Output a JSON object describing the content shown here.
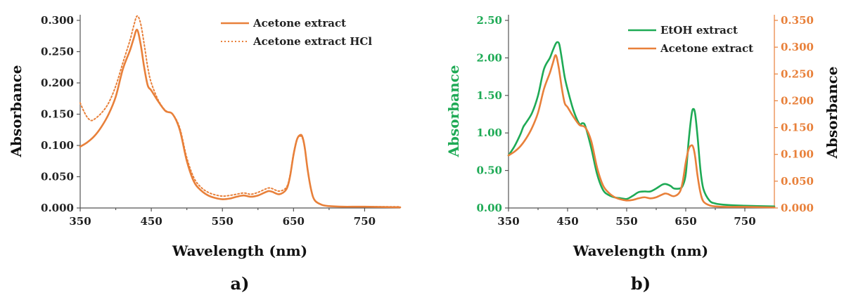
{
  "colors": {
    "orange": "#E8803A",
    "green": "#1EAA55",
    "axis": "#555555",
    "text": "#222222"
  },
  "chart_data": [
    {
      "type": "line",
      "panel_label": "a)",
      "xlabel": "Wavelength (nm)",
      "ylabel": "Absorbance",
      "xlim": [
        350,
        800
      ],
      "ylim": [
        0,
        0.3
      ],
      "xticks": [
        "350",
        "450",
        "550",
        "650",
        "750"
      ],
      "yticks": [
        "0.000",
        "0.050",
        "0.100",
        "0.150",
        "0.200",
        "0.250",
        "0.300"
      ],
      "legend_position": "top-right",
      "series": [
        {
          "name": "Acetone extract",
          "color": "#E8803A",
          "style": "solid",
          "x": [
            350,
            360,
            370,
            380,
            390,
            400,
            410,
            420,
            425,
            430,
            435,
            440,
            445,
            450,
            460,
            470,
            480,
            490,
            500,
            510,
            520,
            530,
            540,
            550,
            560,
            570,
            580,
            590,
            600,
            610,
            615,
            620,
            630,
            640,
            645,
            650,
            655,
            660,
            663,
            666,
            670,
            675,
            680,
            690,
            700,
            720,
            750,
            800
          ],
          "y": [
            0.098,
            0.105,
            0.115,
            0.13,
            0.15,
            0.178,
            0.222,
            0.252,
            0.27,
            0.285,
            0.262,
            0.225,
            0.196,
            0.188,
            0.17,
            0.155,
            0.15,
            0.125,
            0.075,
            0.042,
            0.028,
            0.02,
            0.016,
            0.014,
            0.015,
            0.018,
            0.02,
            0.018,
            0.02,
            0.025,
            0.027,
            0.026,
            0.022,
            0.03,
            0.05,
            0.085,
            0.11,
            0.117,
            0.112,
            0.095,
            0.06,
            0.028,
            0.012,
            0.005,
            0.003,
            0.002,
            0.002,
            0.001
          ]
        },
        {
          "name": "Acetone extract HCl",
          "color": "#E8803A",
          "style": "dotted",
          "x": [
            350,
            355,
            360,
            365,
            370,
            380,
            390,
            400,
            410,
            420,
            425,
            430,
            435,
            440,
            445,
            450,
            460,
            470,
            480,
            490,
            500,
            510,
            520,
            530,
            540,
            550,
            560,
            570,
            580,
            590,
            600,
            610,
            615,
            620,
            630,
            640,
            645,
            650,
            655,
            660,
            663,
            666,
            670,
            675,
            680,
            690,
            700,
            720,
            750,
            800
          ],
          "y": [
            0.168,
            0.155,
            0.145,
            0.14,
            0.142,
            0.152,
            0.168,
            0.195,
            0.232,
            0.268,
            0.29,
            0.307,
            0.295,
            0.262,
            0.225,
            0.2,
            0.172,
            0.156,
            0.15,
            0.128,
            0.08,
            0.048,
            0.033,
            0.025,
            0.021,
            0.019,
            0.02,
            0.022,
            0.024,
            0.022,
            0.025,
            0.03,
            0.032,
            0.031,
            0.027,
            0.033,
            0.052,
            0.087,
            0.11,
            0.115,
            0.11,
            0.094,
            0.06,
            0.028,
            0.012,
            0.005,
            0.003,
            0.002,
            0.002,
            0.002
          ]
        }
      ]
    },
    {
      "type": "line",
      "panel_label": "b)",
      "xlabel": "Wavelength (nm)",
      "ylabel_left": "Absorbance",
      "ylabel_right": "Absorbance",
      "xlim": [
        350,
        800
      ],
      "ylim_left": [
        0,
        2.5
      ],
      "ylim_right": [
        0,
        0.35
      ],
      "xticks": [
        "350",
        "450",
        "550",
        "650",
        "750"
      ],
      "yticks_left": [
        "0.00",
        "0.50",
        "1.00",
        "1.50",
        "2.00",
        "2.50"
      ],
      "yticks_right": [
        "0.000",
        "0.050",
        "0.100",
        "0.150",
        "0.200",
        "0.250",
        "0.300",
        "0.350"
      ],
      "legend_position": "top-right",
      "series": [
        {
          "name": "EtOH extract",
          "axis": "left",
          "color": "#1EAA55",
          "style": "solid",
          "x": [
            350,
            360,
            370,
            375,
            380,
            390,
            400,
            410,
            420,
            425,
            430,
            433,
            436,
            440,
            445,
            450,
            460,
            470,
            475,
            480,
            490,
            500,
            510,
            520,
            530,
            540,
            550,
            560,
            570,
            580,
            590,
            600,
            610,
            615,
            620,
            625,
            630,
            640,
            645,
            650,
            655,
            660,
            663,
            666,
            670,
            675,
            680,
            690,
            700,
            720,
            750,
            800
          ],
          "y": [
            0.7,
            0.82,
            0.98,
            1.08,
            1.14,
            1.27,
            1.5,
            1.85,
            2.0,
            2.1,
            2.19,
            2.21,
            2.18,
            2.0,
            1.75,
            1.58,
            1.3,
            1.12,
            1.13,
            1.09,
            0.8,
            0.45,
            0.24,
            0.17,
            0.14,
            0.13,
            0.12,
            0.16,
            0.21,
            0.22,
            0.22,
            0.26,
            0.31,
            0.32,
            0.31,
            0.29,
            0.26,
            0.26,
            0.3,
            0.45,
            0.9,
            1.25,
            1.32,
            1.25,
            0.95,
            0.5,
            0.25,
            0.1,
            0.06,
            0.04,
            0.03,
            0.02
          ]
        },
        {
          "name": "Acetone extract",
          "axis": "right",
          "color": "#E8803A",
          "style": "solid",
          "x": [
            350,
            360,
            370,
            380,
            390,
            400,
            410,
            420,
            425,
            430,
            435,
            440,
            445,
            450,
            460,
            470,
            480,
            490,
            500,
            510,
            520,
            530,
            540,
            550,
            560,
            570,
            580,
            590,
            600,
            610,
            615,
            620,
            630,
            640,
            645,
            650,
            655,
            660,
            663,
            666,
            670,
            675,
            680,
            690,
            700,
            720,
            750,
            800
          ],
          "y": [
            0.098,
            0.105,
            0.115,
            0.13,
            0.15,
            0.178,
            0.222,
            0.252,
            0.27,
            0.285,
            0.262,
            0.225,
            0.196,
            0.188,
            0.17,
            0.155,
            0.15,
            0.125,
            0.075,
            0.042,
            0.028,
            0.02,
            0.016,
            0.014,
            0.015,
            0.018,
            0.02,
            0.018,
            0.02,
            0.025,
            0.027,
            0.026,
            0.022,
            0.03,
            0.05,
            0.085,
            0.11,
            0.117,
            0.112,
            0.095,
            0.06,
            0.028,
            0.012,
            0.005,
            0.003,
            0.002,
            0.002,
            0.001
          ]
        }
      ]
    }
  ]
}
